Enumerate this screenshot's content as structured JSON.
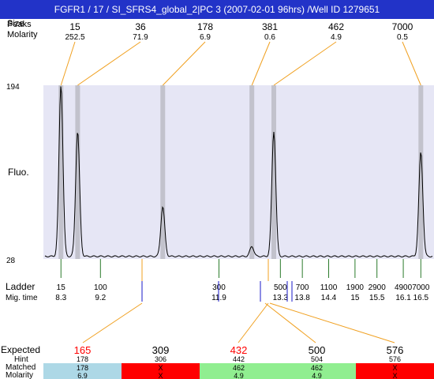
{
  "title": "FGFR1 / 17 / SI_SFRS4_global_2|PC 3 (2007-02-01 96hrs) /Well ID 1279651",
  "header": {
    "labels": {
      "size": "Size",
      "overlap": "Peaks",
      "molarity": "Molarity"
    },
    "peaks": [
      {
        "size": "15",
        "molarity": "252.5"
      },
      {
        "size": "36",
        "molarity": "71.9"
      },
      {
        "size": "178",
        "molarity": "6.9"
      },
      {
        "size": "381",
        "molarity": "0.6"
      },
      {
        "size": "462",
        "molarity": "4.9"
      },
      {
        "size": "7000",
        "molarity": "0.5"
      }
    ]
  },
  "axis": {
    "ylabel": "Fluo.",
    "ymax": "194",
    "ymin": "28"
  },
  "ladder": {
    "label": "Ladder",
    "mig_label": "Mig. time",
    "items": [
      {
        "bp": "15",
        "time": "8.3"
      },
      {
        "bp": "100",
        "time": "9.2"
      },
      {
        "bp": "300",
        "time": "11.9"
      },
      {
        "bp": "500",
        "time": "13.3"
      },
      {
        "bp": "700",
        "time": "13.8"
      },
      {
        "bp": "1100",
        "time": "14.4"
      },
      {
        "bp": "1900",
        "time": "15"
      },
      {
        "bp": "2900",
        "time": "15.5"
      },
      {
        "bp": "4900",
        "time": "16.1"
      },
      {
        "bp": "7000",
        "time": "16.5"
      }
    ]
  },
  "expected": {
    "labels": {
      "expected": "Expected",
      "hint": "Hint",
      "matched": "Matched",
      "molarity": "Molarity"
    },
    "columns": [
      {
        "expected": "165",
        "hint": "178",
        "matched": "178",
        "molarity": "6.9",
        "status": "ok",
        "highlight": true
      },
      {
        "expected": "309",
        "hint": "306",
        "matched": "X",
        "molarity": "X",
        "status": "miss",
        "highlight": false
      },
      {
        "expected": "432",
        "hint": "442",
        "matched": "462",
        "molarity": "4.9",
        "status": "ok",
        "highlight": true
      },
      {
        "expected": "500",
        "hint": "504",
        "matched": "462",
        "molarity": "4.9",
        "status": "ok",
        "highlight": false
      },
      {
        "expected": "576",
        "hint": "576",
        "matched": "X",
        "molarity": "X",
        "status": "miss",
        "highlight": false
      }
    ]
  },
  "colors": {
    "plot_bg": "#e6e6f5",
    "band": "#c2c2cc",
    "orange": "#f0a020",
    "green": "#2a7a2a",
    "blue": "#1a1ac8",
    "red": "#ff0000",
    "ok_first": "#add8e6",
    "ok": "#90ee90",
    "miss": "#ff0000",
    "highlight_text": "#ff0000"
  },
  "chart_data": {
    "type": "line",
    "x_unit": "migration time (s)",
    "ylim": [
      28,
      194
    ],
    "xlim": [
      7.9,
      16.8
    ],
    "peaks": [
      {
        "size_bp": 15,
        "time": 8.3,
        "height": 194
      },
      {
        "size_bp": 36,
        "time": 8.68,
        "height": 150
      },
      {
        "size_bp": 178,
        "time": 10.62,
        "height": 78
      },
      {
        "size_bp": 381,
        "time": 12.65,
        "height": 40
      },
      {
        "size_bp": 462,
        "time": 13.15,
        "height": 150
      },
      {
        "size_bp": 7000,
        "time": 16.5,
        "height": 130
      }
    ],
    "bands": [
      8.3,
      8.68,
      10.62,
      12.65,
      13.15,
      16.5
    ],
    "ladder_ticks": [
      {
        "bp": 15,
        "time": 8.3
      },
      {
        "bp": 100,
        "time": 9.2
      },
      {
        "bp": 300,
        "time": 11.9
      },
      {
        "bp": 500,
        "time": 13.3
      },
      {
        "bp": 700,
        "time": 13.8
      },
      {
        "bp": 1100,
        "time": 14.4
      },
      {
        "bp": 1900,
        "time": 15
      },
      {
        "bp": 2900,
        "time": 15.5
      },
      {
        "bp": 4900,
        "time": 16.1
      },
      {
        "bp": 7000,
        "time": 16.5
      }
    ]
  }
}
